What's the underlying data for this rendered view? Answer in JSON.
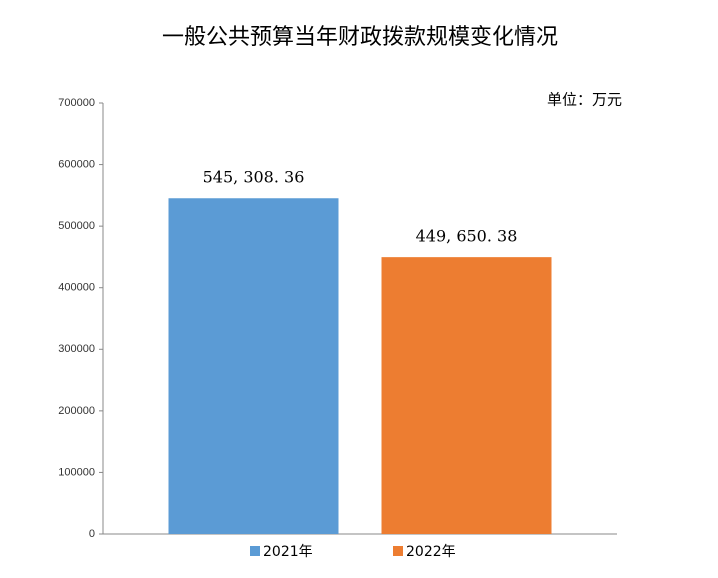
{
  "chart_data": {
    "type": "bar",
    "title": "一般公共预算当年财政拨款规模变化情况",
    "unit": "单位：万元",
    "categories": [
      null
    ],
    "series": [
      {
        "name": "2021年",
        "color": "#5b9bd5",
        "values": [
          545308.36
        ],
        "value_labels": [
          "545, 308. 36"
        ]
      },
      {
        "name": "2022年",
        "color": "#ed7d31",
        "values": [
          449650.38
        ],
        "value_labels": [
          "449, 650. 38"
        ]
      }
    ],
    "ylim": [
      0,
      700000
    ],
    "yticks": [
      0,
      100000,
      200000,
      300000,
      400000,
      500000,
      600000,
      700000
    ],
    "grid": false
  }
}
